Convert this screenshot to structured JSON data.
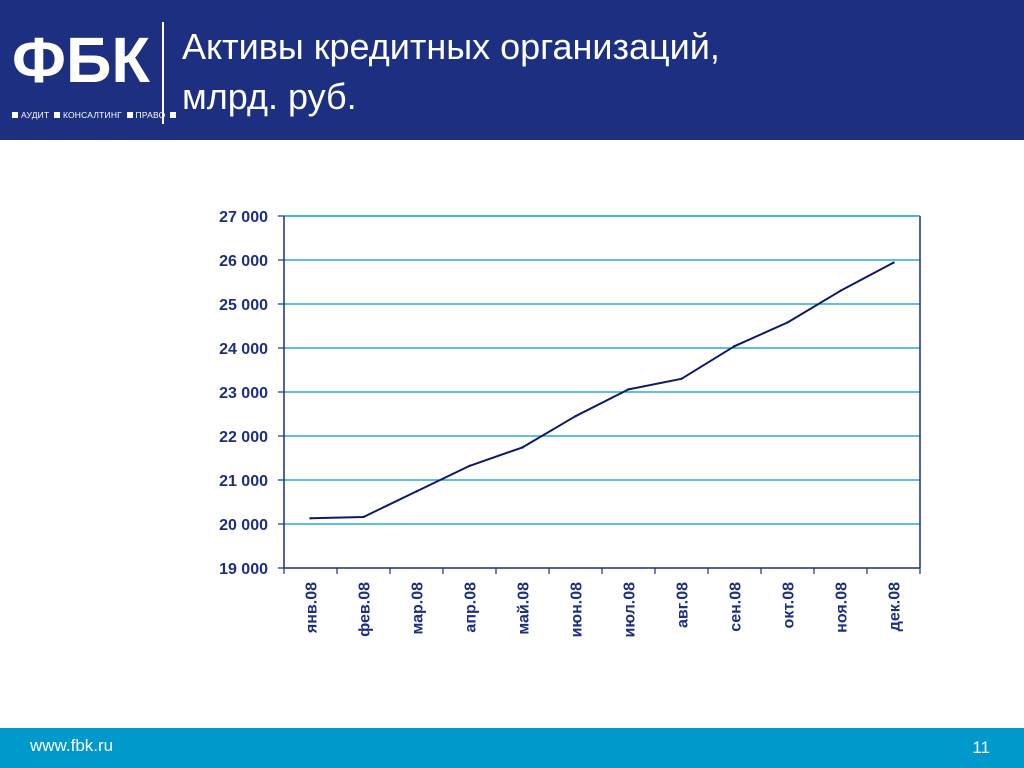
{
  "header": {
    "logo_text": "ФБК",
    "tagline_items": [
      "АУДИТ",
      "КОНСАЛТИНГ",
      "ПРАВО"
    ],
    "title_line1": "Активы кредитных организаций,",
    "title_line2": "млрд. руб."
  },
  "colors": {
    "header_bg": "#1c2f80",
    "footer_bg": "#0099cc",
    "line": "#0d1a6b",
    "gridline": "#0099cc",
    "axis": "#1c2f80",
    "label": "#1c2f80"
  },
  "footer": {
    "url": "www.fbk.ru",
    "page_number": "11"
  },
  "chart_data": {
    "type": "line",
    "title": "",
    "xlabel": "",
    "ylabel": "",
    "categories": [
      "янв.08",
      "фев.08",
      "мар.08",
      "апр.08",
      "май.08",
      "июн.08",
      "июл.08",
      "авг.08",
      "сен.08",
      "окт.08",
      "ноя.08",
      "дек.08"
    ],
    "series": [
      {
        "values": [
          20130,
          20160,
          20740,
          21320,
          21740,
          22450,
          23060,
          23300,
          24040,
          24580,
          25300,
          25940
        ]
      }
    ],
    "ylim": [
      19000,
      27000
    ],
    "yticks": [
      19000,
      20000,
      21000,
      22000,
      23000,
      24000,
      25000,
      26000,
      27000
    ],
    "ytick_labels": [
      "19 000",
      "20 000",
      "21 000",
      "22 000",
      "23 000",
      "24 000",
      "25 000",
      "26 000",
      "27 000"
    ],
    "grid": true,
    "legend": "none"
  }
}
